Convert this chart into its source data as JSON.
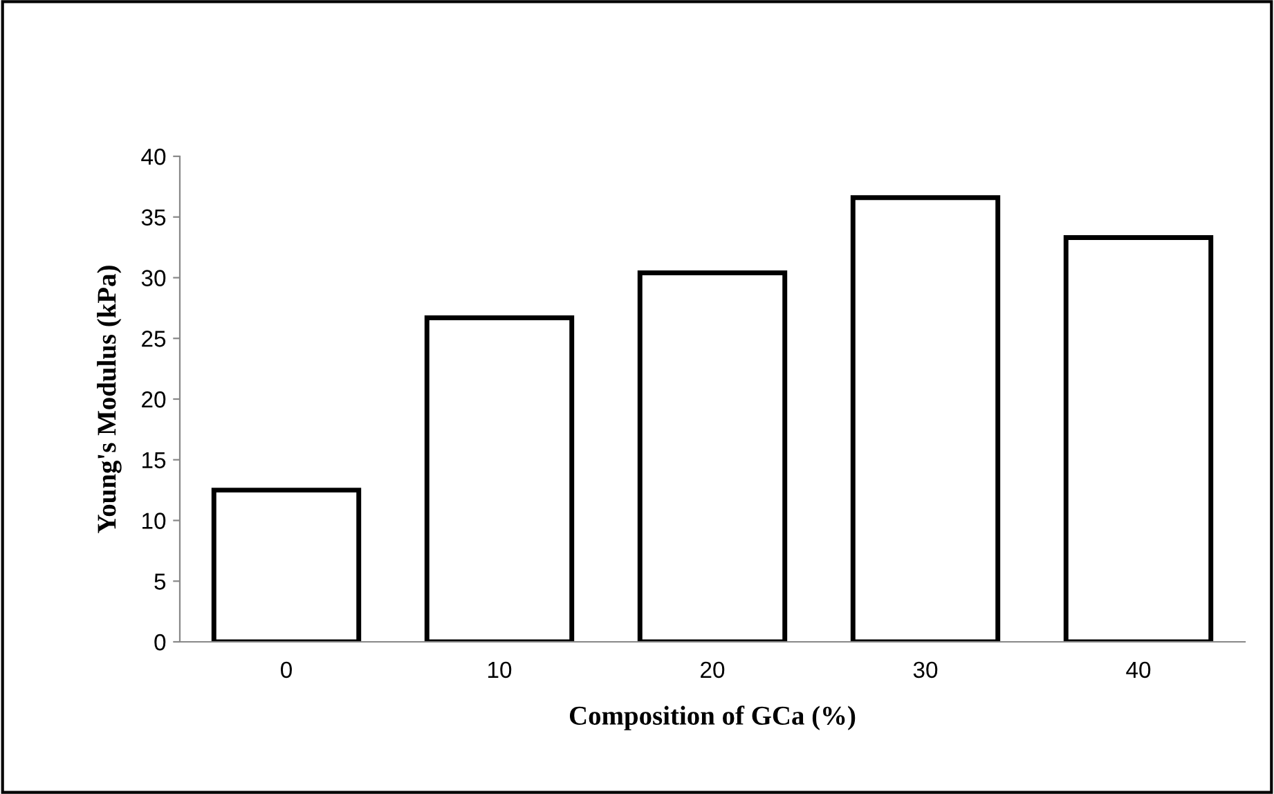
{
  "chart_data": {
    "type": "bar",
    "xlabel": "Composition of GCa (%)",
    "ylabel": "Young's Modulus (kPa)",
    "categories": [
      "0",
      "10",
      "20",
      "30",
      "40"
    ],
    "values": [
      12.5,
      26.7,
      30.4,
      36.6,
      33.3
    ],
    "color": "#ffffff",
    "ylim": [
      0,
      40
    ],
    "yticks": [
      0,
      5,
      10,
      15,
      20,
      25,
      30,
      35,
      40
    ],
    "grid": false,
    "legend": false
  }
}
